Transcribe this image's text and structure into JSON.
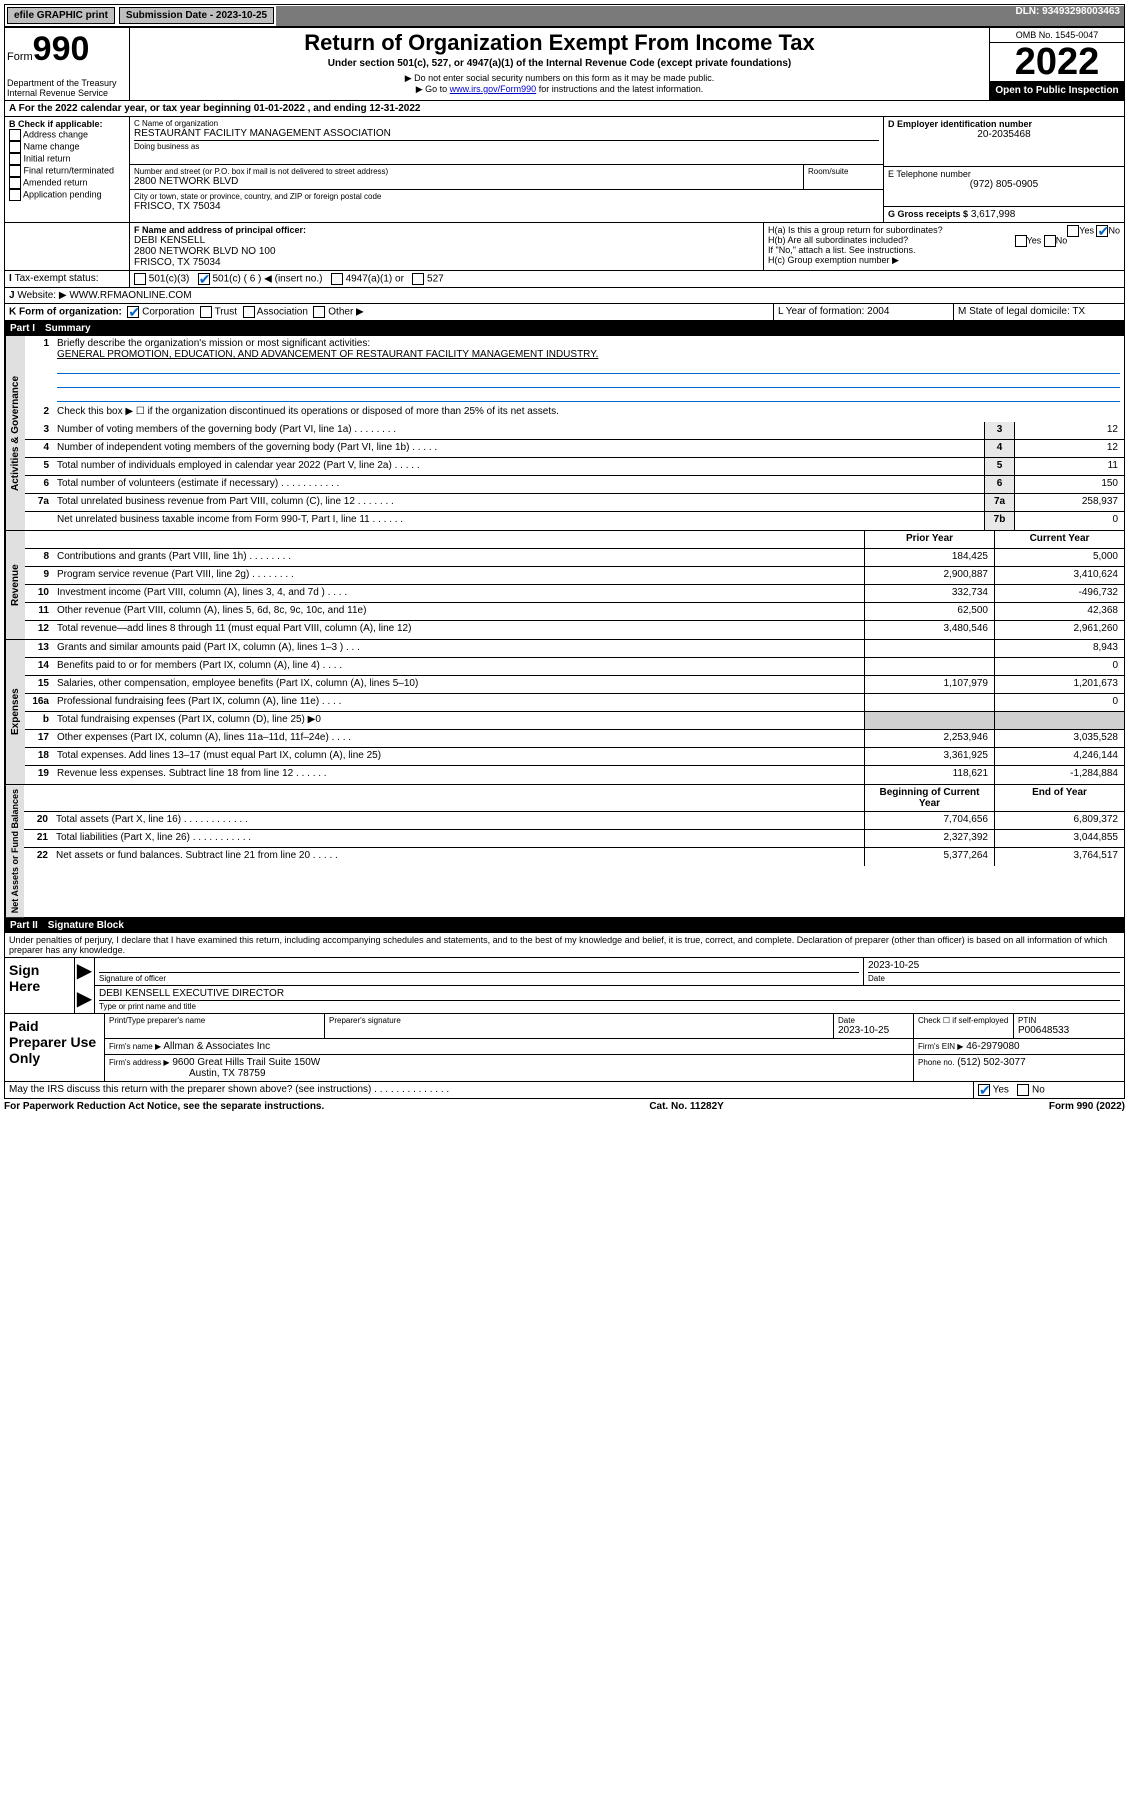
{
  "topbar": {
    "efile": "efile GRAPHIC print",
    "submission_label": "Submission Date - 2023-10-25",
    "dln": "DLN: 93493298003463"
  },
  "header": {
    "form_word": "Form",
    "form_no": "990",
    "dept": "Department of the Treasury",
    "irs": "Internal Revenue Service",
    "title": "Return of Organization Exempt From Income Tax",
    "sub1": "Under section 501(c), 527, or 4947(a)(1) of the Internal Revenue Code (except private foundations)",
    "sub2": "▶ Do not enter social security numbers on this form as it may be made public.",
    "sub3_pre": "▶ Go to ",
    "sub3_link": "www.irs.gov/Form990",
    "sub3_post": " for instructions and the latest information.",
    "omb": "OMB No. 1545-0047",
    "year": "2022",
    "open": "Open to Public Inspection"
  },
  "A": {
    "text": "For the 2022 calendar year, or tax year beginning 01-01-2022   , and ending 12-31-2022"
  },
  "B": {
    "label": "B Check if applicable:",
    "opts": [
      "Address change",
      "Name change",
      "Initial return",
      "Final return/terminated",
      "Amended return",
      "Application pending"
    ]
  },
  "C": {
    "label": "C Name of organization",
    "name": "RESTAURANT FACILITY MANAGEMENT ASSOCIATION",
    "dba_label": "Doing business as",
    "addr_label": "Number and street (or P.O. box if mail is not delivered to street address)",
    "room_label": "Room/suite",
    "addr": "2800 NETWORK BLVD",
    "city_label": "City or town, state or province, country, and ZIP or foreign postal code",
    "city": "FRISCO, TX  75034"
  },
  "D": {
    "label": "D Employer identification number",
    "val": "20-2035468"
  },
  "E": {
    "label": "E Telephone number",
    "val": "(972) 805-0905"
  },
  "G": {
    "label": "G Gross receipts $",
    "val": "3,617,998"
  },
  "F": {
    "label": "F Name and address of principal officer:",
    "name": "DEBI KENSELL",
    "addr1": "2800 NETWORK BLVD NO 100",
    "addr2": "FRISCO, TX  75034"
  },
  "H": {
    "a": "H(a)  Is this a group return for subordinates?",
    "b": "H(b)  Are all subordinates included?",
    "b_note": "If \"No,\" attach a list. See instructions.",
    "c": "H(c)  Group exemption number ▶"
  },
  "I": {
    "label": "Tax-exempt status:",
    "o1": "501(c)(3)",
    "o2": "501(c) ( 6 ) ◀ (insert no.)",
    "o3": "4947(a)(1) or",
    "o4": "527"
  },
  "J": {
    "label": "Website: ▶",
    "val": "WWW.RFMAONLINE.COM"
  },
  "K": {
    "label": "K Form of organization:",
    "o1": "Corporation",
    "o2": "Trust",
    "o3": "Association",
    "o4": "Other ▶"
  },
  "L": {
    "label": "L Year of formation: 2004"
  },
  "M": {
    "label": "M State of legal domicile: TX"
  },
  "part1": {
    "num": "Part I",
    "title": "Summary",
    "q1": "Briefly describe the organization's mission or most significant activities:",
    "mission": "GENERAL PROMOTION, EDUCATION, AND ADVANCEMENT OF RESTAURANT FACILITY MANAGEMENT INDUSTRY.",
    "q2": "Check this box ▶ ☐ if the organization discontinued its operations or disposed of more than 25% of its net assets.",
    "gov_label": "Activities & Governance",
    "rev_label": "Revenue",
    "exp_label": "Expenses",
    "net_label": "Net Assets or Fund Balances",
    "lines_gov": [
      {
        "no": "3",
        "txt": "Number of voting members of the governing body (Part VI, line 1a)  .   .   .   .   .   .   .   .",
        "box": "3",
        "val": "12"
      },
      {
        "no": "4",
        "txt": "Number of independent voting members of the governing body (Part VI, line 1b)  .   .   .   .   .",
        "box": "4",
        "val": "12"
      },
      {
        "no": "5",
        "txt": "Total number of individuals employed in calendar year 2022 (Part V, line 2a)  .   .   .   .   .",
        "box": "5",
        "val": "11"
      },
      {
        "no": "6",
        "txt": "Total number of volunteers (estimate if necessary)  .   .   .   .   .   .   .   .   .   .   .",
        "box": "6",
        "val": "150"
      },
      {
        "no": "7a",
        "txt": "Total unrelated business revenue from Part VIII, column (C), line 12  .   .   .   .   .   .   .",
        "box": "7a",
        "val": "258,937"
      },
      {
        "no": "",
        "txt": "Net unrelated business taxable income from Form 990-T, Part I, line 11  .   .   .   .   .   .",
        "box": "7b",
        "val": "0"
      }
    ],
    "col_prior": "Prior Year",
    "col_cur": "Current Year",
    "lines_rev": [
      {
        "no": "8",
        "txt": "Contributions and grants (Part VIII, line 1h)  .   .   .   .   .   .   .   .",
        "prior": "184,425",
        "cur": "5,000"
      },
      {
        "no": "9",
        "txt": "Program service revenue (Part VIII, line 2g)  .   .   .   .   .   .   .   .",
        "prior": "2,900,887",
        "cur": "3,410,624"
      },
      {
        "no": "10",
        "txt": "Investment income (Part VIII, column (A), lines 3, 4, and 7d )  .   .   .   .",
        "prior": "332,734",
        "cur": "-496,732"
      },
      {
        "no": "11",
        "txt": "Other revenue (Part VIII, column (A), lines 5, 6d, 8c, 9c, 10c, and 11e)",
        "prior": "62,500",
        "cur": "42,368"
      },
      {
        "no": "12",
        "txt": "Total revenue—add lines 8 through 11 (must equal Part VIII, column (A), line 12)",
        "prior": "3,480,546",
        "cur": "2,961,260"
      }
    ],
    "lines_exp": [
      {
        "no": "13",
        "txt": "Grants and similar amounts paid (Part IX, column (A), lines 1–3 )  .   .   .",
        "prior": "",
        "cur": "8,943"
      },
      {
        "no": "14",
        "txt": "Benefits paid to or for members (Part IX, column (A), line 4)  .   .   .   .",
        "prior": "",
        "cur": "0"
      },
      {
        "no": "15",
        "txt": "Salaries, other compensation, employee benefits (Part IX, column (A), lines 5–10)",
        "prior": "1,107,979",
        "cur": "1,201,673"
      },
      {
        "no": "16a",
        "txt": "Professional fundraising fees (Part IX, column (A), line 11e)  .   .   .   .",
        "prior": "",
        "cur": "0"
      },
      {
        "no": "b",
        "txt": "Total fundraising expenses (Part IX, column (D), line 25) ▶0",
        "prior": "grey",
        "cur": "grey"
      },
      {
        "no": "17",
        "txt": "Other expenses (Part IX, column (A), lines 11a–11d, 11f–24e)  .   .   .   .",
        "prior": "2,253,946",
        "cur": "3,035,528"
      },
      {
        "no": "18",
        "txt": "Total expenses. Add lines 13–17 (must equal Part IX, column (A), line 25)",
        "prior": "3,361,925",
        "cur": "4,246,144"
      },
      {
        "no": "19",
        "txt": "Revenue less expenses. Subtract line 18 from line 12  .   .   .   .   .   .",
        "prior": "118,621",
        "cur": "-1,284,884"
      }
    ],
    "col_beg": "Beginning of Current Year",
    "col_end": "End of Year",
    "lines_net": [
      {
        "no": "20",
        "txt": "Total assets (Part X, line 16)  .   .   .   .   .   .   .   .   .   .   .   .",
        "prior": "7,704,656",
        "cur": "6,809,372"
      },
      {
        "no": "21",
        "txt": "Total liabilities (Part X, line 26)  .   .   .   .   .   .   .   .   .   .   .",
        "prior": "2,327,392",
        "cur": "3,044,855"
      },
      {
        "no": "22",
        "txt": "Net assets or fund balances. Subtract line 21 from line 20  .   .   .   .   .",
        "prior": "5,377,264",
        "cur": "3,764,517"
      }
    ]
  },
  "part2": {
    "num": "Part II",
    "title": "Signature Block",
    "decl": "Under penalties of perjury, I declare that I have examined this return, including accompanying schedules and statements, and to the best of my knowledge and belief, it is true, correct, and complete. Declaration of preparer (other than officer) is based on all information of which preparer has any knowledge.",
    "sign_here": "Sign Here",
    "sig_officer": "Signature of officer",
    "date": "Date",
    "sig_date": "2023-10-25",
    "name_title": "DEBI KENSELL  EXECUTIVE DIRECTOR",
    "type_name": "Type or print name and title",
    "paid": "Paid Preparer Use Only",
    "prep_name_lbl": "Print/Type preparer's name",
    "prep_sig_lbl": "Preparer's signature",
    "prep_date": "2023-10-25",
    "check_self": "Check ☐ if self-employed",
    "ptin_lbl": "PTIN",
    "ptin": "P00648533",
    "firm_name_lbl": "Firm's name    ▶",
    "firm_name": "Allman & Associates Inc",
    "firm_ein_lbl": "Firm's EIN ▶",
    "firm_ein": "46-2979080",
    "firm_addr_lbl": "Firm's address ▶",
    "firm_addr1": "9600 Great Hills Trail Suite 150W",
    "firm_addr2": "Austin, TX  78759",
    "phone_lbl": "Phone no.",
    "phone": "(512) 502-3077",
    "may_irs": "May the IRS discuss this return with the preparer shown above? (see instructions)  .   .   .   .   .   .   .   .   .   .   .   .   .   ."
  },
  "footer": {
    "left": "For Paperwork Reduction Act Notice, see the separate instructions.",
    "mid": "Cat. No. 11282Y",
    "right": "Form 990 (2022)"
  }
}
